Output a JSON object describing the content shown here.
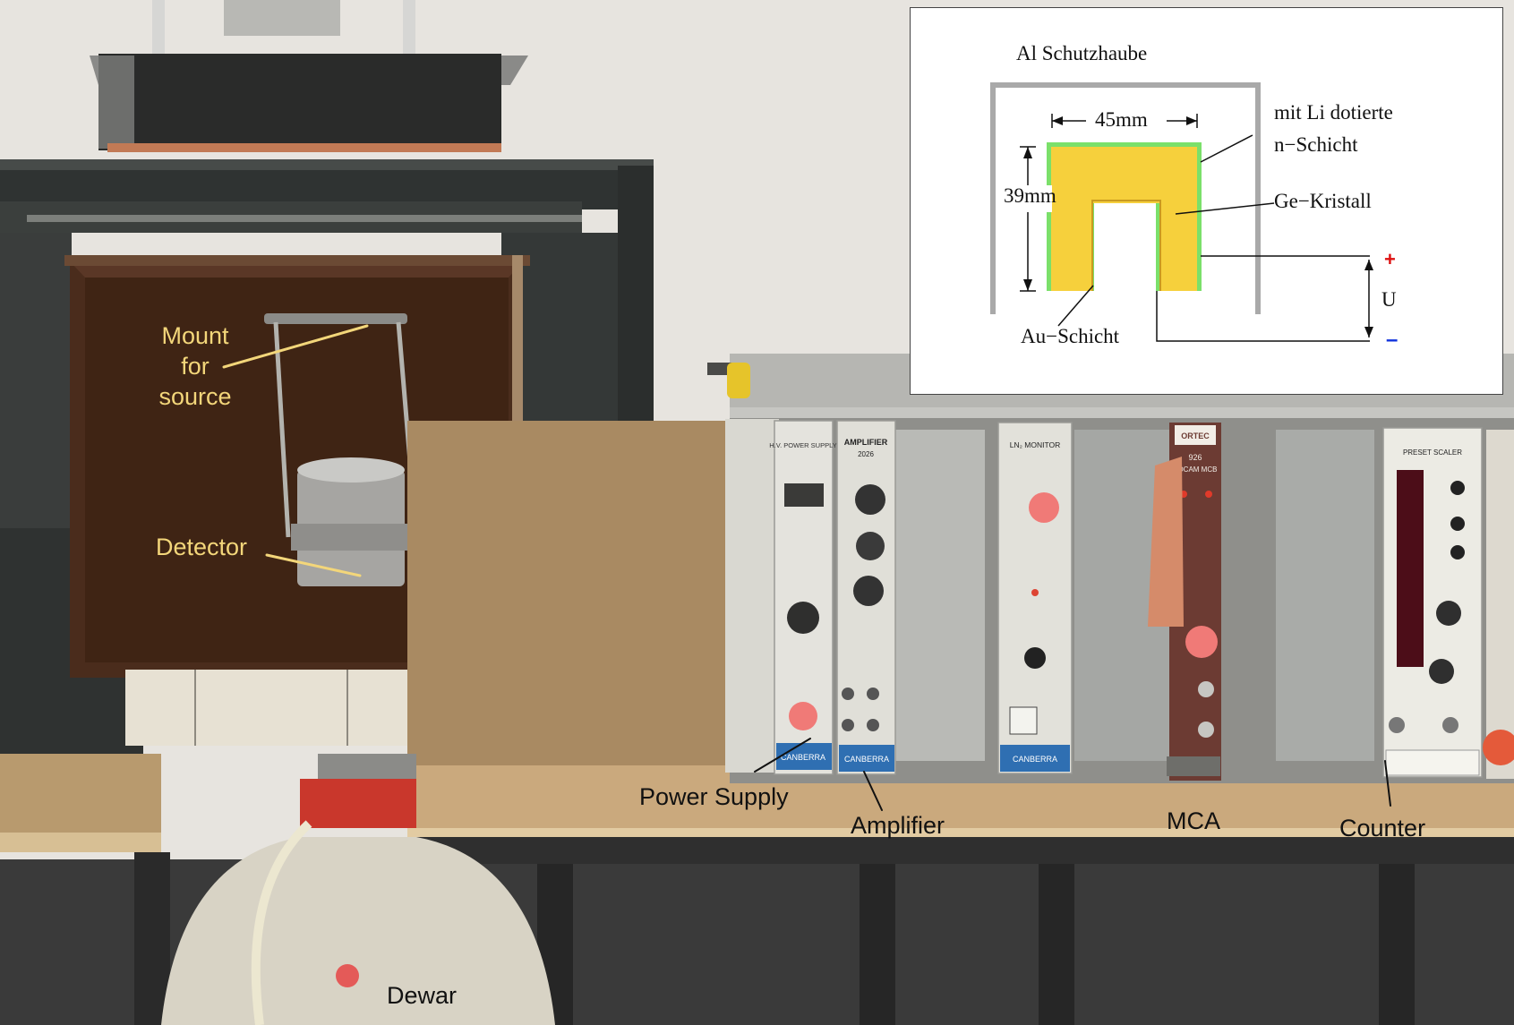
{
  "photo_labels": {
    "mount": "Mount\nfor\nsource",
    "detector": "Detector",
    "power_supply": "Power Supply",
    "amplifier": "Amplifier",
    "mca": "MCA",
    "counter": "Counter",
    "dewar": "Dewar"
  },
  "inset": {
    "al_hood": "Al Schutzhaube",
    "width": "45mm",
    "height": "39mm",
    "li_layer_line1": "mit Li dotierte",
    "li_layer_line2": "n−Schicht",
    "crystal": "Ge−Kristall",
    "plus": "+",
    "voltage": "U",
    "minus": "–",
    "au_layer": "Au−Schicht"
  },
  "module_texts": {
    "hv_title": "H.V. POWER SUPPLY",
    "amp_title": "AMPLIFIER",
    "amp_model": "2026",
    "ln2": "LN₂ MONITOR",
    "ortec": "ORTEC",
    "adcam_model": "926",
    "adcam": "ADCAM MCB",
    "scaler": "PRESET SCALER",
    "canberra": "CANBERRA"
  },
  "colors": {
    "crystal_fill": "#f6d03c",
    "li_layer": "#7be06a",
    "hood": "#a9a9a9",
    "label_yellow": "#f3d67a",
    "plus": "#dd1111",
    "minus": "#1133dd"
  }
}
